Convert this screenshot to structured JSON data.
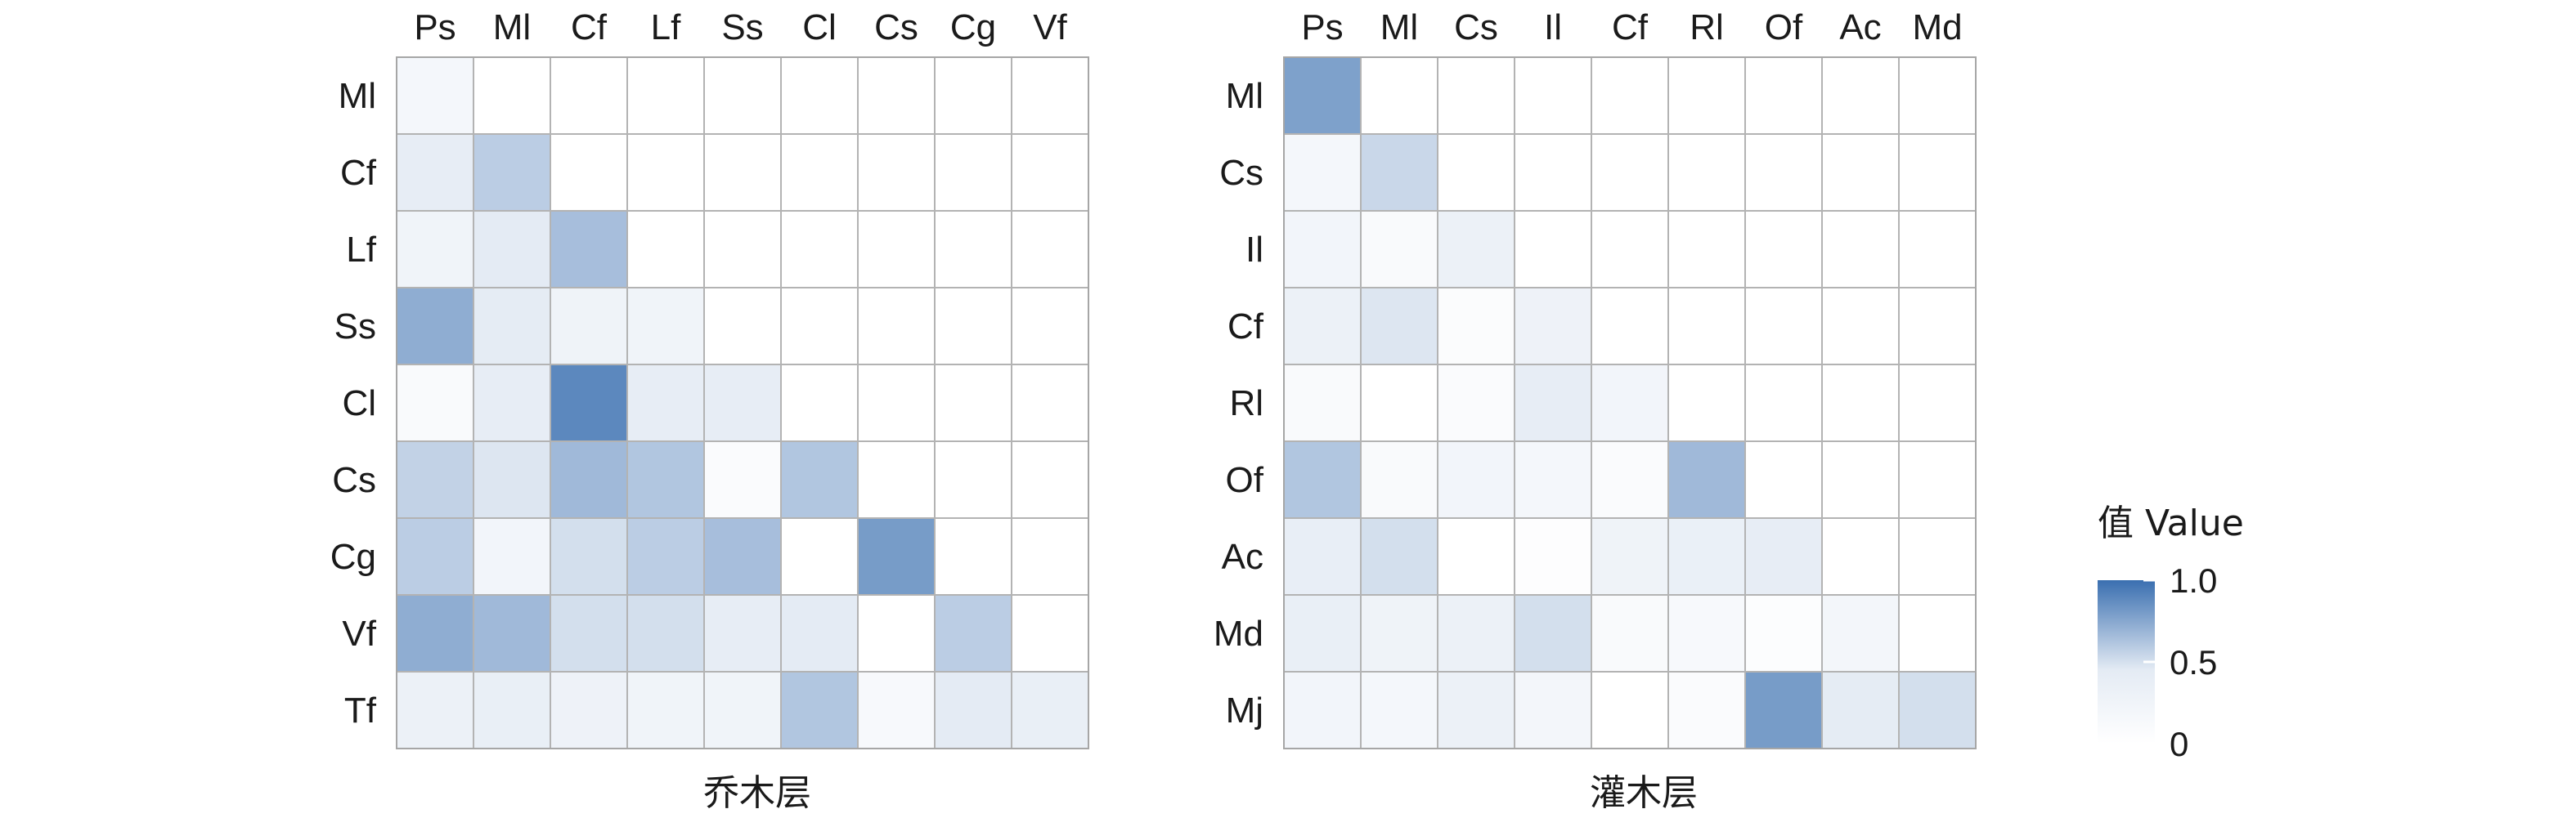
{
  "chart_data": [
    {
      "type": "heatmap",
      "caption": "乔木层",
      "col_labels": [
        "Ps",
        "Ml",
        "Cf",
        "Lf",
        "Ss",
        "Cl",
        "Cs",
        "Cg",
        "Vf"
      ],
      "row_labels": [
        "Ml",
        "Cf",
        "Lf",
        "Ss",
        "Cl",
        "Cs",
        "Cg",
        "Vf",
        "Tf"
      ],
      "values": [
        [
          0.2,
          null,
          null,
          null,
          null,
          null,
          null,
          null,
          null
        ],
        [
          0.45,
          0.62,
          null,
          null,
          null,
          null,
          null,
          null,
          null
        ],
        [
          0.28,
          0.5,
          0.68,
          null,
          null,
          null,
          null,
          null,
          null
        ],
        [
          0.75,
          0.48,
          0.3,
          0.28,
          null,
          null,
          null,
          null,
          null
        ],
        [
          0.12,
          0.45,
          0.9,
          0.45,
          0.45,
          null,
          null,
          null,
          null
        ],
        [
          0.6,
          0.52,
          0.7,
          0.65,
          0.1,
          0.65,
          null,
          null,
          null
        ],
        [
          0.62,
          0.25,
          0.55,
          0.62,
          0.68,
          0.0,
          0.82,
          null,
          null
        ],
        [
          0.75,
          0.7,
          0.55,
          0.55,
          0.45,
          0.5,
          0.0,
          0.62,
          null
        ],
        [
          0.35,
          0.4,
          0.32,
          0.28,
          0.28,
          0.65,
          0.15,
          0.5,
          0.4
        ]
      ]
    },
    {
      "type": "heatmap",
      "caption": "灌木层",
      "col_labels": [
        "Ps",
        "Ml",
        "Cs",
        "Il",
        "Cf",
        "Rl",
        "Of",
        "Ac",
        "Md"
      ],
      "row_labels": [
        "Ml",
        "Cs",
        "Il",
        "Cf",
        "Rl",
        "Of",
        "Ac",
        "Md",
        "Mj"
      ],
      "values": [
        [
          0.8,
          null,
          null,
          null,
          null,
          null,
          null,
          null,
          null
        ],
        [
          0.2,
          0.58,
          null,
          null,
          null,
          null,
          null,
          null,
          null
        ],
        [
          0.25,
          0.12,
          0.35,
          null,
          null,
          null,
          null,
          null,
          null
        ],
        [
          0.35,
          0.52,
          0.08,
          0.32,
          null,
          null,
          null,
          null,
          null
        ],
        [
          0.12,
          0.0,
          0.1,
          0.45,
          0.25,
          null,
          null,
          null,
          null
        ],
        [
          0.65,
          0.12,
          0.25,
          0.2,
          0.1,
          0.7,
          null,
          null,
          null
        ],
        [
          0.42,
          0.55,
          0.0,
          0.04,
          0.3,
          0.38,
          0.45,
          null,
          null
        ],
        [
          0.4,
          0.3,
          0.35,
          0.55,
          0.12,
          0.15,
          0.05,
          0.22,
          null
        ],
        [
          0.25,
          0.2,
          0.35,
          0.22,
          0.0,
          0.1,
          0.82,
          0.48,
          0.55
        ]
      ]
    }
  ],
  "legend": {
    "title": "值 Value",
    "ticks": [
      {
        "value": 1.0,
        "label": "1.0"
      },
      {
        "value": 0.5,
        "label": "0.5"
      },
      {
        "value": 0,
        "label": "0"
      }
    ],
    "color_low": "#ffffff",
    "color_high": "#3a6fb0"
  }
}
